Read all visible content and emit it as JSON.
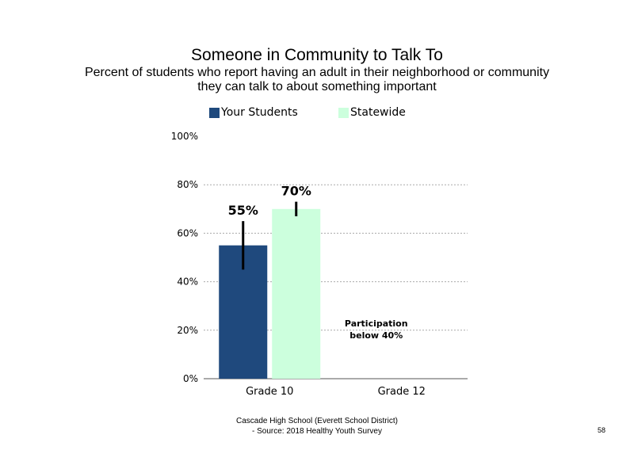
{
  "chart_data": {
    "type": "bar",
    "title": "Someone in Community to Talk To",
    "subtitle_lines": [
      "Percent of students who report having an adult in their neighborhood or community",
      "they can talk to about something important"
    ],
    "categories": [
      "Grade 10",
      "Grade 12"
    ],
    "series": [
      {
        "name": "Your Students",
        "values": [
          55,
          null
        ],
        "error_low": [
          45,
          null
        ],
        "error_high": [
          65,
          null
        ],
        "labels": [
          "55%",
          ""
        ]
      },
      {
        "name": "Statewide",
        "values": [
          70,
          null
        ],
        "error_low": [
          67,
          null
        ],
        "error_high": [
          73,
          null
        ],
        "labels": [
          "70%",
          ""
        ]
      }
    ],
    "colors": {
      "Your Students": "#1f497d",
      "Statewide": "#ccffdd"
    },
    "ylim": [
      0,
      100
    ],
    "yticks": [
      "0%",
      "20%",
      "40%",
      "60%",
      "80%",
      "100%"
    ],
    "grid": true,
    "legend_position": "top",
    "annotation": [
      "Participation",
      "below 40%"
    ]
  },
  "footer": {
    "line1": "Cascade High School (Everett School District)",
    "line2": "- Source: 2018 Healthy  Youth Survey"
  },
  "page_number": "58"
}
